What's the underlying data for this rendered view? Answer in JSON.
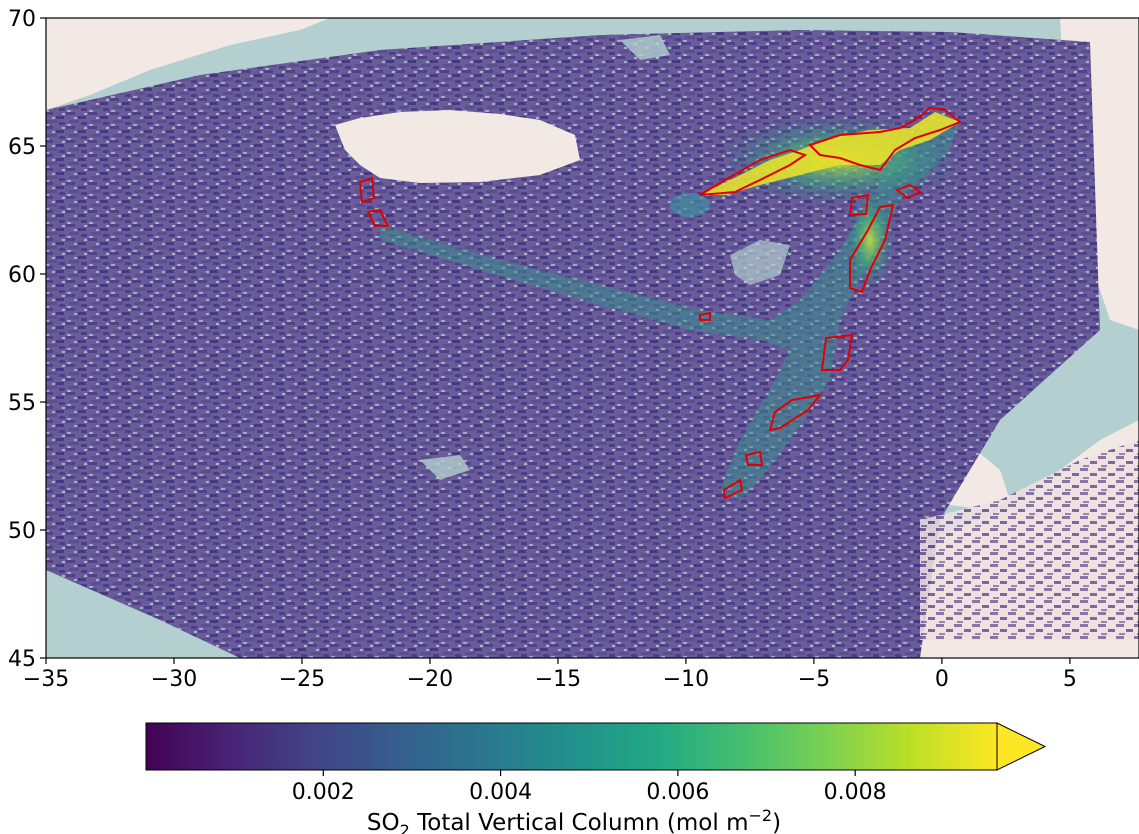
{
  "map": {
    "lon_range": [
      -35,
      7.7
    ],
    "lat_range": [
      45,
      70
    ],
    "x_ticks": [
      {
        "value": -35,
        "label": "−35"
      },
      {
        "value": -30,
        "label": "−30"
      },
      {
        "value": -25,
        "label": "−25"
      },
      {
        "value": -20,
        "label": "−20"
      },
      {
        "value": -15,
        "label": "−15"
      },
      {
        "value": -10,
        "label": "−10"
      },
      {
        "value": -5,
        "label": "−5"
      },
      {
        "value": 0,
        "label": "0"
      },
      {
        "value": 5,
        "label": "5"
      }
    ],
    "y_ticks": [
      {
        "value": 45,
        "label": "45"
      },
      {
        "value": 50,
        "label": "50"
      },
      {
        "value": 55,
        "label": "55"
      },
      {
        "value": 60,
        "label": "60"
      },
      {
        "value": 65,
        "label": "65"
      },
      {
        "value": 70,
        "label": "70"
      }
    ],
    "colors": {
      "ocean": "#b3cfcf",
      "land": "#f3e9e4",
      "outline": "#e00000",
      "background_field": "#5a4a8c"
    },
    "colormap": "viridis",
    "plume_contour_color": "red"
  },
  "colorbar": {
    "range": [
      0,
      0.0096
    ],
    "ticks": [
      "0.002",
      "0.004",
      "0.006",
      "0.008"
    ],
    "tick_values": [
      0.002,
      0.004,
      0.006,
      0.008
    ],
    "extend": "max",
    "label_main": "SO",
    "label_sub": "2",
    "label_rest": " Total Vertical Column (mol m",
    "label_sup": "−2",
    "label_end": ")"
  }
}
